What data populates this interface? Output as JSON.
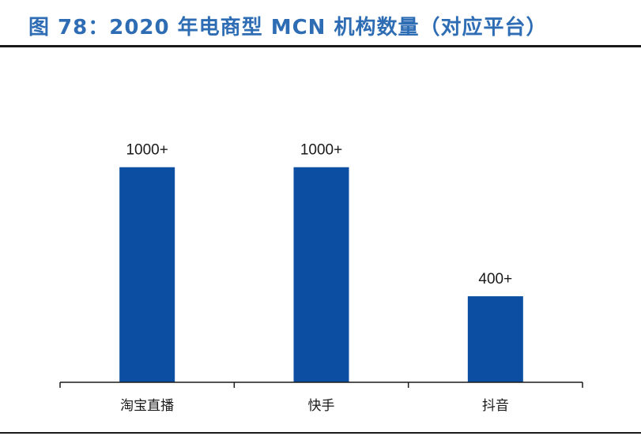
{
  "header": {
    "title": "图 78：2020 年电商型 MCN 机构数量（对应平台）"
  },
  "colors": {
    "title": "#2e6db4",
    "bar": "#0b4ea2",
    "axis": "#1a1a1a"
  },
  "chart_data": {
    "type": "bar",
    "categories": [
      "淘宝直播",
      "快手",
      "抖音"
    ],
    "values": [
      1000,
      1000,
      400
    ],
    "data_labels": [
      "1000+",
      "1000+",
      "400+"
    ],
    "ylim": [
      0,
      1300
    ],
    "grid": false,
    "legend": "none"
  }
}
